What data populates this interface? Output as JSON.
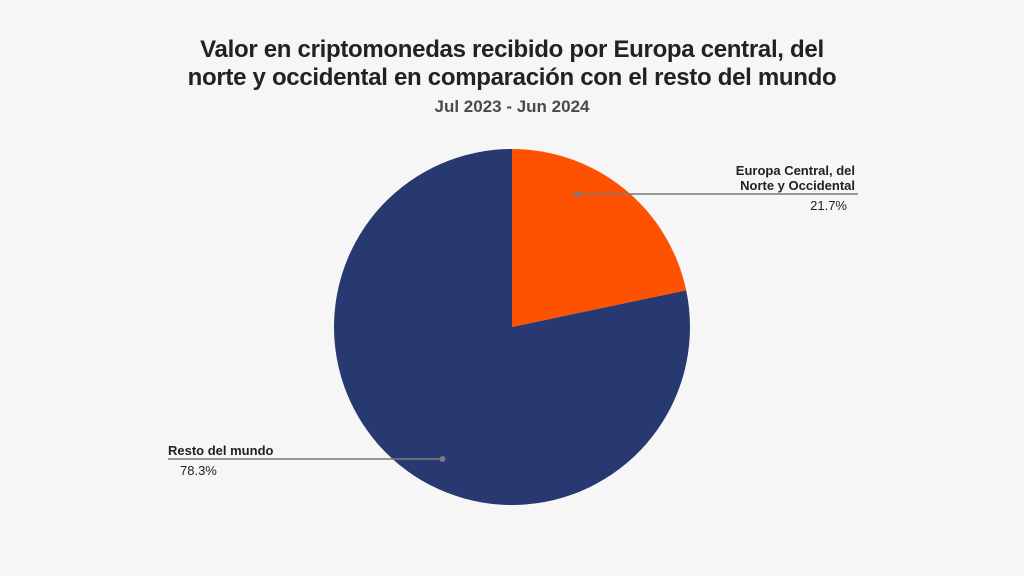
{
  "title_line1": "Valor en criptomonedas recibido por Europa central, del",
  "title_line2": "norte y occidental en comparación con el resto del mundo",
  "subtitle": "Jul 2023 - Jun 2024",
  "chart_data": {
    "type": "pie",
    "title": "Valor en criptomonedas recibido por Europa central, del norte y occidental en comparación con el resto del mundo",
    "subtitle": "Jul 2023 - Jun 2024",
    "slices": [
      {
        "label_lines": [
          "Europa Central, del",
          "Norte y Occidental"
        ],
        "value": 21.7,
        "value_label": "21.7%",
        "color": "#ff5200"
      },
      {
        "label_lines": [
          "Resto del mundo"
        ],
        "value": 78.3,
        "value_label": "78.3%",
        "color": "#283870"
      }
    ],
    "start_angle_deg": 0,
    "direction": "clockwise"
  },
  "colors": {
    "background": "#f6f6f6",
    "leader_line": "#7a7a7a"
  }
}
